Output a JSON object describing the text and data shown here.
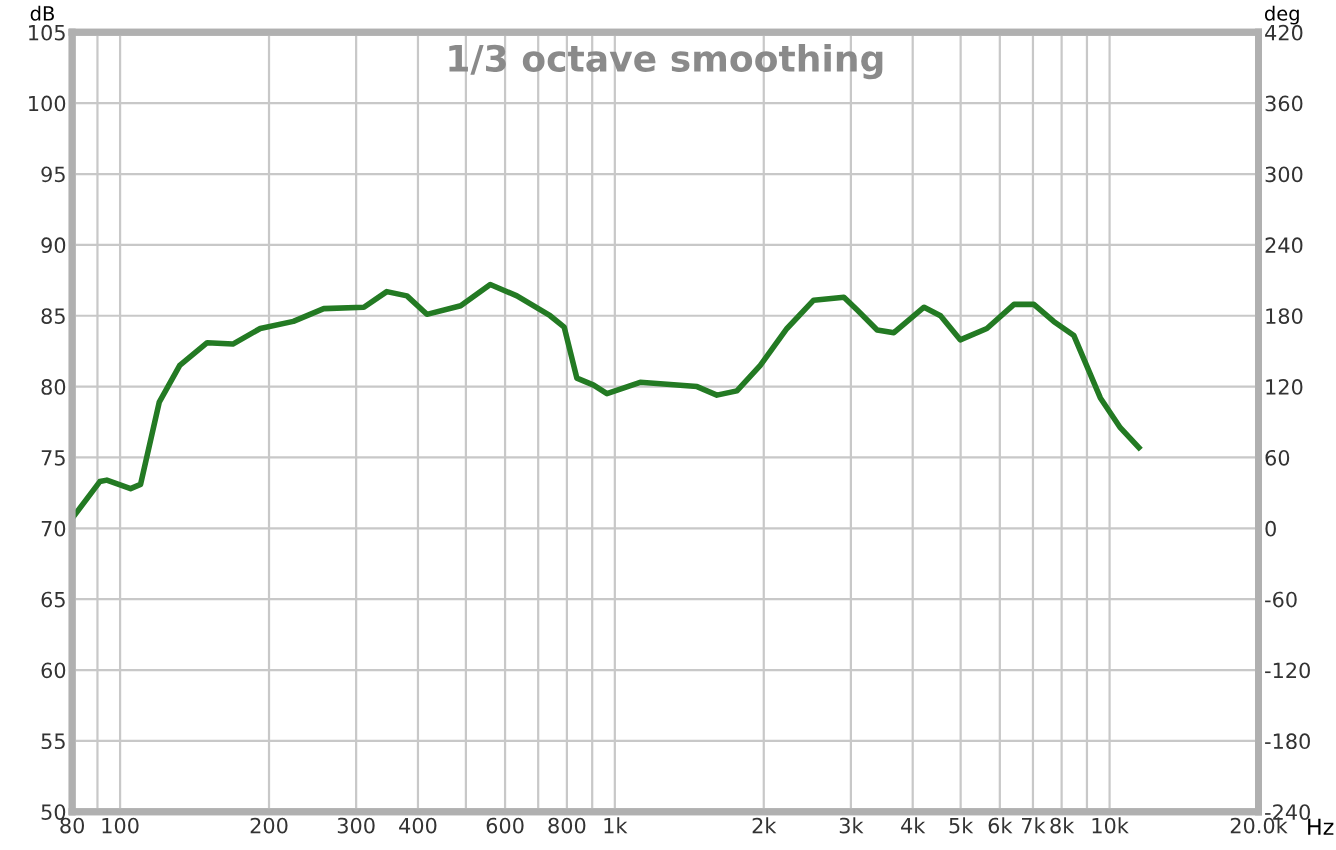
{
  "chart_data": {
    "type": "line",
    "title": "1/3 octave smoothing",
    "xlabel": "Hz",
    "ylabel": "dB",
    "y2label": "deg",
    "x": [
      80,
      91,
      94,
      105,
      110,
      120,
      132,
      150,
      169,
      192,
      224,
      258,
      311,
      346,
      380,
      417,
      488,
      560,
      634,
      740,
      790,
      838,
      906,
      964,
      1125,
      1236,
      1466,
      1608,
      1765,
      1968,
      2228,
      2523,
      2904,
      3090,
      3390,
      3665,
      4217,
      4553,
      4990,
      5650,
      6410,
      7030,
      7710,
      8470,
      9580,
      10510,
      11460
    ],
    "series": [
      {
        "color": "#237a23",
        "values": [
          70.7,
          73.3,
          73.4,
          72.8,
          73.1,
          78.9,
          81.5,
          83.1,
          83.0,
          84.1,
          84.6,
          85.5,
          85.6,
          86.7,
          86.4,
          85.1,
          85.7,
          87.2,
          86.4,
          85.0,
          84.2,
          80.6,
          80.1,
          79.5,
          80.3,
          80.2,
          80.0,
          79.4,
          79.7,
          81.5,
          84.1,
          86.1,
          86.3,
          85.4,
          84.0,
          83.8,
          85.6,
          85.0,
          83.3,
          84.1,
          85.8,
          85.8,
          84.6,
          83.6,
          79.2,
          77.1,
          75.7
        ]
      }
    ],
    "log": "x",
    "xlim": [
      80,
      20000
    ],
    "xticks": [
      80,
      100,
      {
        "value": 90,
        "label": null
      },
      200,
      300,
      400,
      {
        "value": 500,
        "label": null
      },
      600,
      {
        "value": 700,
        "label": null
      },
      800,
      {
        "value": 900,
        "label": null
      },
      {
        "value": 1000,
        "label": "1k"
      },
      {
        "value": 2000,
        "label": "2k"
      },
      {
        "value": 3000,
        "label": "3k"
      },
      {
        "value": 4000,
        "label": "4k"
      },
      {
        "value": 5000,
        "label": "5k"
      },
      {
        "value": 6000,
        "label": "6k"
      },
      {
        "value": 7000,
        "label": "7k"
      },
      {
        "value": 8000,
        "label": "8k"
      },
      {
        "value": 9000,
        "label": null
      },
      {
        "value": 10000,
        "label": "10k"
      },
      {
        "value": 20000,
        "label": "20.0k"
      }
    ],
    "ylim": [
      50,
      105
    ],
    "yticks": [
      50,
      55,
      60,
      65,
      70,
      75,
      80,
      85,
      90,
      95,
      100,
      105
    ],
    "y2lim": [
      -240,
      420
    ],
    "y2ticks": [
      -240,
      -180,
      -120,
      -60,
      0,
      60,
      120,
      180,
      240,
      300,
      360,
      420
    ],
    "grid": true,
    "legend": false,
    "marker": "none",
    "line_style": "solid"
  }
}
